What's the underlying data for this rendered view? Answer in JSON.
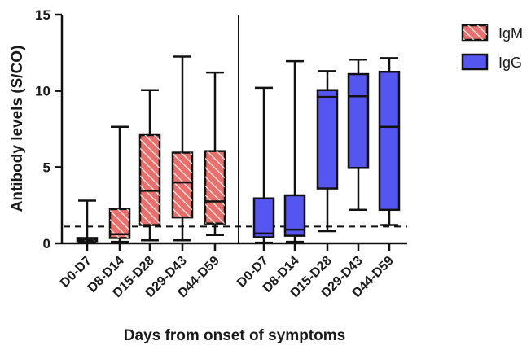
{
  "chart_data": {
    "type": "box",
    "ylabel": "Antibody levels (S/CO)",
    "xlabel": "Days from onset of symptoms",
    "ylim": [
      0,
      15
    ],
    "yticks": [
      "0",
      "5",
      "10",
      "15"
    ],
    "ytick_values": [
      0,
      5,
      10,
      15
    ],
    "cutoff_line": 1.1,
    "categories": [
      "D0-D7",
      "D8-D14",
      "D15-D28",
      "D29-D43",
      "D44-D59"
    ],
    "legend_position": "top-right",
    "series": [
      {
        "name": "IgM",
        "color": "#e8706c",
        "hatch": true,
        "boxes": [
          {
            "min": 0.05,
            "q1": 0.15,
            "median": 0.25,
            "q3": 0.35,
            "max": 2.8
          },
          {
            "min": 0.1,
            "q1": 0.35,
            "median": 0.6,
            "q3": 2.25,
            "max": 7.65
          },
          {
            "min": 0.2,
            "q1": 1.2,
            "median": 3.45,
            "q3": 7.1,
            "max": 10.05
          },
          {
            "min": 0.2,
            "q1": 1.7,
            "median": 4.0,
            "q3": 5.95,
            "max": 12.25
          },
          {
            "min": 0.55,
            "q1": 1.3,
            "median": 2.75,
            "q3": 6.05,
            "max": 11.2
          }
        ]
      },
      {
        "name": "IgG",
        "color": "#5555f0",
        "hatch": false,
        "boxes": [
          {
            "min": 0.05,
            "q1": 0.4,
            "median": 0.65,
            "q3": 2.95,
            "max": 10.2
          },
          {
            "min": 0.1,
            "q1": 0.5,
            "median": 0.9,
            "q3": 3.15,
            "max": 11.95
          },
          {
            "min": 0.8,
            "q1": 3.6,
            "median": 9.6,
            "q3": 10.05,
            "max": 11.3
          },
          {
            "min": 2.2,
            "q1": 4.95,
            "median": 9.65,
            "q3": 11.1,
            "max": 12.05
          },
          {
            "min": 1.2,
            "q1": 2.2,
            "median": 7.65,
            "q3": 11.25,
            "max": 12.15
          }
        ]
      }
    ]
  }
}
